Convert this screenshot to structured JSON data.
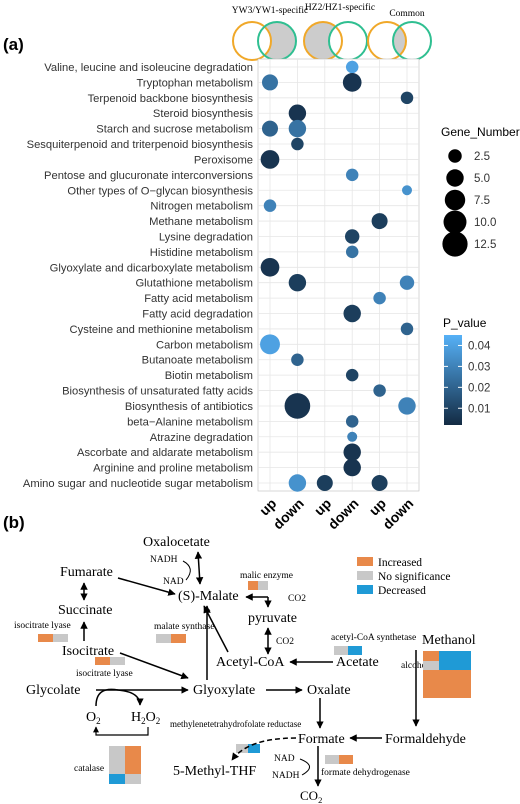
{
  "chart_data": [
    {
      "type": "scatter",
      "panel_label": "(a)",
      "venn_labels": [
        "YW3/YW1-specific",
        "HZ2/HZ1-specific",
        "Common"
      ],
      "categories": [
        "up",
        "down",
        "up",
        "down",
        "up",
        "down"
      ],
      "pathways": [
        "Valine, leucine and isoleucine degradation",
        "Tryptophan metabolism",
        "Terpenoid backbone biosynthesis",
        "Steroid biosynthesis",
        "Starch and sucrose metabolism",
        "Sesquiterpenoid and triterpenoid biosynthesis",
        "Peroxisome",
        "Pentose and glucuronate interconversions",
        "Other types of O−glycan biosynthesis",
        "Nitrogen metabolism",
        "Methane metabolism",
        "Lysine degradation",
        "Histidine metabolism",
        "Glyoxylate and dicarboxylate metabolism",
        "Glutathione metabolism",
        "Fatty acid metabolism",
        "Fatty acid degradation",
        "Cysteine and methionine metabolism",
        "Carbon metabolism",
        "Butanoate metabolism",
        "Biotin metabolism",
        "Biosynthesis of unsaturated fatty acids",
        "Biosynthesis of antibiotics",
        "beta−Alanine metabolism",
        "Atrazine degradation",
        "Ascorbate and aldarate metabolism",
        "Arginine and proline metabolism",
        "Amino sugar and nucleotide sugar metabolism"
      ],
      "points": [
        {
          "pathway": "Valine, leucine and isoleucine degradation",
          "col": 4,
          "gene_number": 2,
          "p_value": 0.04
        },
        {
          "pathway": "Tryptophan metabolism",
          "col": 1,
          "gene_number": 4,
          "p_value": 0.025
        },
        {
          "pathway": "Tryptophan metabolism",
          "col": 4,
          "gene_number": 6,
          "p_value": 0.005
        },
        {
          "pathway": "Terpenoid backbone biosynthesis",
          "col": 6,
          "gene_number": 2,
          "p_value": 0.01
        },
        {
          "pathway": "Steroid biosynthesis",
          "col": 2,
          "gene_number": 5,
          "p_value": 0.005
        },
        {
          "pathway": "Starch and sucrose metabolism",
          "col": 1,
          "gene_number": 4,
          "p_value": 0.02
        },
        {
          "pathway": "Starch and sucrose metabolism",
          "col": 2,
          "gene_number": 5,
          "p_value": 0.025
        },
        {
          "pathway": "Sesquiterpenoid and triterpenoid biosynthesis",
          "col": 2,
          "gene_number": 2,
          "p_value": 0.01
        },
        {
          "pathway": "Peroxisome",
          "col": 1,
          "gene_number": 6,
          "p_value": 0.005
        },
        {
          "pathway": "Pentose and glucuronate interconversions",
          "col": 4,
          "gene_number": 2,
          "p_value": 0.03
        },
        {
          "pathway": "Other types of O−glycan biosynthesis",
          "col": 6,
          "gene_number": 1,
          "p_value": 0.035
        },
        {
          "pathway": "Nitrogen metabolism",
          "col": 1,
          "gene_number": 2,
          "p_value": 0.03
        },
        {
          "pathway": "Methane metabolism",
          "col": 5,
          "gene_number": 4,
          "p_value": 0.008
        },
        {
          "pathway": "Lysine degradation",
          "col": 4,
          "gene_number": 3,
          "p_value": 0.01
        },
        {
          "pathway": "Histidine metabolism",
          "col": 4,
          "gene_number": 2,
          "p_value": 0.025
        },
        {
          "pathway": "Glyoxylate and dicarboxylate metabolism",
          "col": 1,
          "gene_number": 6,
          "p_value": 0.005
        },
        {
          "pathway": "Glutathione metabolism",
          "col": 2,
          "gene_number": 5,
          "p_value": 0.008
        },
        {
          "pathway": "Glutathione metabolism",
          "col": 6,
          "gene_number": 3,
          "p_value": 0.03
        },
        {
          "pathway": "Fatty acid metabolism",
          "col": 5,
          "gene_number": 2,
          "p_value": 0.03
        },
        {
          "pathway": "Fatty acid degradation",
          "col": 4,
          "gene_number": 5,
          "p_value": 0.008
        },
        {
          "pathway": "Cysteine and methionine metabolism",
          "col": 6,
          "gene_number": 2,
          "p_value": 0.02
        },
        {
          "pathway": "Carbon metabolism",
          "col": 1,
          "gene_number": 7,
          "p_value": 0.04
        },
        {
          "pathway": "Butanoate metabolism",
          "col": 2,
          "gene_number": 2,
          "p_value": 0.02
        },
        {
          "pathway": "Biotin metabolism",
          "col": 4,
          "gene_number": 2,
          "p_value": 0.01
        },
        {
          "pathway": "Biosynthesis of unsaturated fatty acids",
          "col": 5,
          "gene_number": 2,
          "p_value": 0.02
        },
        {
          "pathway": "Biosynthesis of antibiotics",
          "col": 2,
          "gene_number": 13,
          "p_value": 0.005
        },
        {
          "pathway": "Biosynthesis of antibiotics",
          "col": 6,
          "gene_number": 5,
          "p_value": 0.03
        },
        {
          "pathway": "beta−Alanine metabolism",
          "col": 4,
          "gene_number": 2,
          "p_value": 0.02
        },
        {
          "pathway": "Atrazine degradation",
          "col": 4,
          "gene_number": 1,
          "p_value": 0.03
        },
        {
          "pathway": "Ascorbate and aldarate metabolism",
          "col": 4,
          "gene_number": 5,
          "p_value": 0.005
        },
        {
          "pathway": "Arginine and proline metabolism",
          "col": 4,
          "gene_number": 5,
          "p_value": 0.005
        },
        {
          "pathway": "Amino sugar and nucleotide sugar metabolism",
          "col": 2,
          "gene_number": 5,
          "p_value": 0.035
        },
        {
          "pathway": "Amino sugar and nucleotide sugar metabolism",
          "col": 3,
          "gene_number": 4,
          "p_value": 0.008
        },
        {
          "pathway": "Amino sugar and nucleotide sugar metabolism",
          "col": 5,
          "gene_number": 4,
          "p_value": 0.008
        }
      ],
      "size_legend": {
        "title": "Gene_Number",
        "values": [
          2.5,
          5.0,
          7.5,
          10.0,
          12.5
        ],
        "labels": [
          "2.5",
          "5.0",
          "7.5",
          "10.0",
          "12.5"
        ]
      },
      "color_legend": {
        "title": "P_value",
        "ticks": [
          0.04,
          0.03,
          0.02,
          0.01
        ],
        "labels": [
          "0.04",
          "0.03",
          "0.02",
          "0.01"
        ],
        "low_color": "#132b43",
        "high_color": "#56b1f7"
      },
      "grid": true
    },
    {
      "type": "diagram",
      "panel_label": "(b)",
      "legend": [
        {
          "label": "Increased",
          "color": "#e8894a"
        },
        {
          "label": "No significance",
          "color": "#c8c8c8"
        },
        {
          "label": "Decreased",
          "color": "#1f9ad6"
        }
      ],
      "nodes": {
        "oxalocetate": "Oxalocetate",
        "fumarate": "Fumarate",
        "malate": "(S)-Malate",
        "succinate": "Succinate",
        "pyruvate": "pyruvate",
        "isocitrate": "Isocitrate",
        "acetylcoa": "Acetyl-CoA",
        "acetate": "Acetate",
        "methanol": "Methanol",
        "glycolate": "Glycolate",
        "glyoxylate": "Glyoxylate",
        "oxalate": "Oxalate",
        "o2": "O",
        "h2o2": "H",
        "formate": "Formate",
        "formaldehyde": "Formaldehyde",
        "methylthf": "5-Methyl-THF",
        "co2_bottom": "CO"
      },
      "cofactors": {
        "nadh_top": "NADH",
        "nad_top": "NAD",
        "co2_malate": "CO2",
        "co2_pyruvate": "CO2",
        "nad_bottom": "NAD",
        "nadh_bottom": "NADH"
      },
      "enzymes": {
        "malic_enzyme": "malic enzyme",
        "isocitrate_lyase_top": "isocitrate lyase",
        "malate_synthase": "malate synthase",
        "isocitrate_lyase_bottom": "isocitrate lyase",
        "acetyl_coa_synthetase": "acetyl-CoA synthetase",
        "alcohol_oxidase": "alcohol oxidase",
        "mthfr": "methylenetetrahydrofolate reductase",
        "catalase": "catalase",
        "formate_dehydrogenase": "formate dehydrogenase"
      }
    }
  ]
}
